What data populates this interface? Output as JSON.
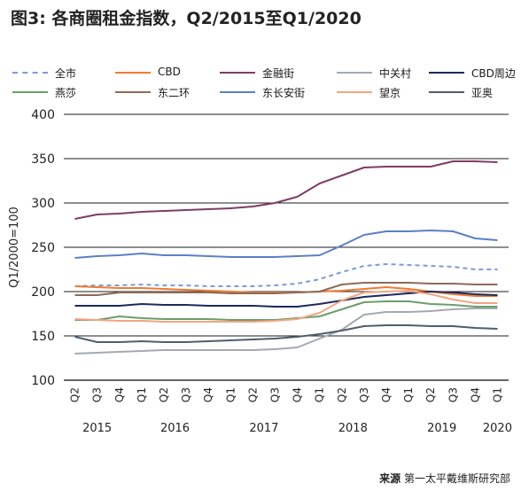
{
  "title": "图3: 各商圈租金指数，Q2/2015至Q1/2020",
  "source": {
    "label": "来源",
    "text": "第一太平戴维斯研究部"
  },
  "chart_data": {
    "type": "line",
    "title": "图3: 各商圈租金指数，Q2/2015至Q1/2020",
    "ylabel": "Q1/2000=100",
    "xlabel": "",
    "ylim": [
      100,
      400
    ],
    "yticks": [
      "100",
      "150",
      "200",
      "250",
      "300",
      "350",
      "400"
    ],
    "grid": true,
    "legend_position": "top",
    "categories": [
      "Q2",
      "Q3",
      "Q4",
      "Q1",
      "Q2",
      "Q3",
      "Q4",
      "Q1",
      "Q2",
      "Q3",
      "Q4",
      "Q1",
      "Q2",
      "Q3",
      "Q4",
      "Q1",
      "Q2",
      "Q3",
      "Q4",
      "Q1"
    ],
    "years": [
      {
        "label": "2015",
        "from": 0,
        "to": 2
      },
      {
        "label": "2016",
        "from": 3,
        "to": 6
      },
      {
        "label": "2017",
        "from": 7,
        "to": 10
      },
      {
        "label": "2018",
        "from": 11,
        "to": 14
      },
      {
        "label": "2019",
        "from": 15,
        "to": 18
      },
      {
        "label": "2020",
        "from": 19,
        "to": 19
      }
    ],
    "series": [
      {
        "name": "全市",
        "color": "#7d9bd6",
        "dash": "5,4",
        "values": [
          206,
          207,
          207,
          208,
          207,
          207,
          206,
          206,
          206,
          207,
          209,
          214,
          222,
          229,
          231,
          230,
          229,
          228,
          225,
          225
        ]
      },
      {
        "name": "CBD",
        "color": "#ee7b32",
        "dash": "",
        "values": [
          206,
          205,
          204,
          204,
          203,
          202,
          201,
          200,
          199,
          199,
          199,
          200,
          201,
          203,
          205,
          203,
          200,
          197,
          195,
          195
        ]
      },
      {
        "name": "金融街",
        "color": "#7e3d65",
        "dash": "",
        "values": [
          282,
          287,
          288,
          290,
          291,
          292,
          293,
          294,
          296,
          300,
          307,
          322,
          331,
          340,
          341,
          341,
          341,
          347,
          347,
          346
        ]
      },
      {
        "name": "中关村",
        "color": "#a3aab0",
        "dash": "",
        "values": [
          130,
          131,
          132,
          133,
          134,
          134,
          134,
          134,
          134,
          135,
          137,
          147,
          157,
          174,
          177,
          177,
          178,
          180,
          181,
          181
        ]
      },
      {
        "name": "CBD周边",
        "color": "#1b2a5c",
        "dash": "",
        "values": [
          184,
          184,
          184,
          186,
          185,
          185,
          184,
          184,
          184,
          183,
          183,
          186,
          190,
          194,
          196,
          198,
          200,
          199,
          197,
          196
        ]
      },
      {
        "name": "燕莎",
        "color": "#6b9e6b",
        "dash": "",
        "values": [
          168,
          168,
          172,
          170,
          169,
          169,
          169,
          168,
          168,
          168,
          170,
          172,
          180,
          188,
          189,
          189,
          186,
          185,
          183,
          183
        ]
      },
      {
        "name": "东二环",
        "color": "#8c6b58",
        "dash": "",
        "values": [
          196,
          196,
          199,
          199,
          199,
          199,
          199,
          198,
          198,
          198,
          199,
          200,
          208,
          210,
          210,
          210,
          209,
          209,
          208,
          208
        ]
      },
      {
        "name": "东长安街",
        "color": "#5b80c4",
        "dash": "",
        "values": [
          238,
          240,
          241,
          243,
          241,
          241,
          240,
          239,
          239,
          239,
          240,
          241,
          252,
          264,
          268,
          268,
          269,
          268,
          260,
          258
        ]
      },
      {
        "name": "望京",
        "color": "#f4a582",
        "dash": "",
        "values": [
          169,
          168,
          167,
          167,
          166,
          166,
          166,
          166,
          166,
          167,
          169,
          176,
          190,
          199,
          200,
          201,
          197,
          191,
          187,
          187
        ]
      },
      {
        "name": "亚奥",
        "color": "#4f5e6e",
        "dash": "",
        "values": [
          149,
          143,
          143,
          144,
          143,
          143,
          144,
          145,
          146,
          147,
          149,
          152,
          156,
          161,
          162,
          162,
          161,
          161,
          159,
          158
        ]
      }
    ]
  }
}
